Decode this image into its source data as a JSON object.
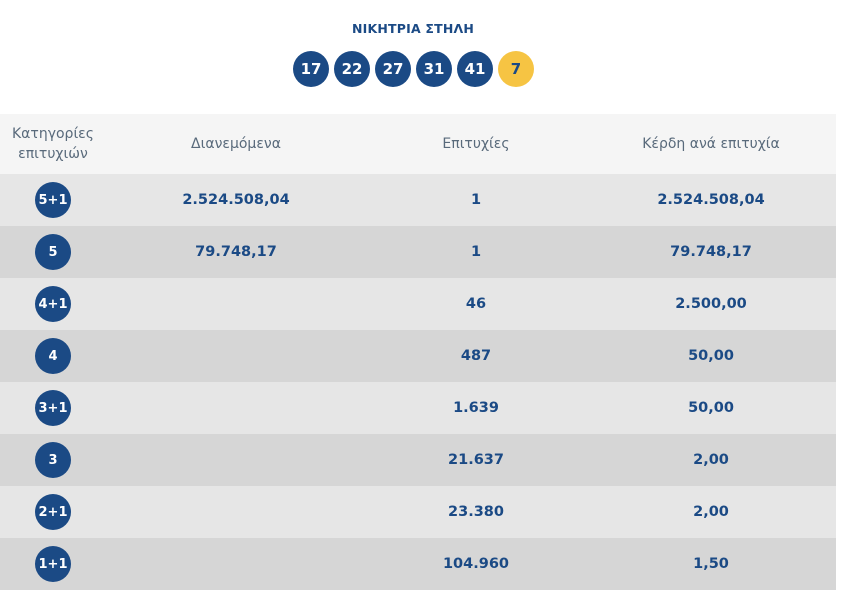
{
  "winning_line": {
    "title": "ΝΙΚΗΤΡΙΑ ΣΤΗΛΗ",
    "numbers": [
      "17",
      "22",
      "27",
      "31",
      "41"
    ],
    "bonus": "7",
    "ball_color": "#1b4a85",
    "bonus_color": "#f6c443"
  },
  "table": {
    "headers": {
      "category": "Κατηγορίες επιτυχιών",
      "distributed": "Διανεμόμενα",
      "winners": "Επιτυχίες",
      "prize": "Κέρδη ανά επιτυχία"
    },
    "rows": [
      {
        "category": "5+1",
        "distributed": "2.524.508,04",
        "winners": "1",
        "prize": "2.524.508,04"
      },
      {
        "category": "5",
        "distributed": "79.748,17",
        "winners": "1",
        "prize": "79.748,17"
      },
      {
        "category": "4+1",
        "distributed": "",
        "winners": "46",
        "prize": "2.500,00"
      },
      {
        "category": "4",
        "distributed": "",
        "winners": "487",
        "prize": "50,00"
      },
      {
        "category": "3+1",
        "distributed": "",
        "winners": "1.639",
        "prize": "50,00"
      },
      {
        "category": "3",
        "distributed": "",
        "winners": "21.637",
        "prize": "2,00"
      },
      {
        "category": "2+1",
        "distributed": "",
        "winners": "23.380",
        "prize": "2,00"
      },
      {
        "category": "1+1",
        "distributed": "",
        "winners": "104.960",
        "prize": "1,50"
      }
    ]
  }
}
